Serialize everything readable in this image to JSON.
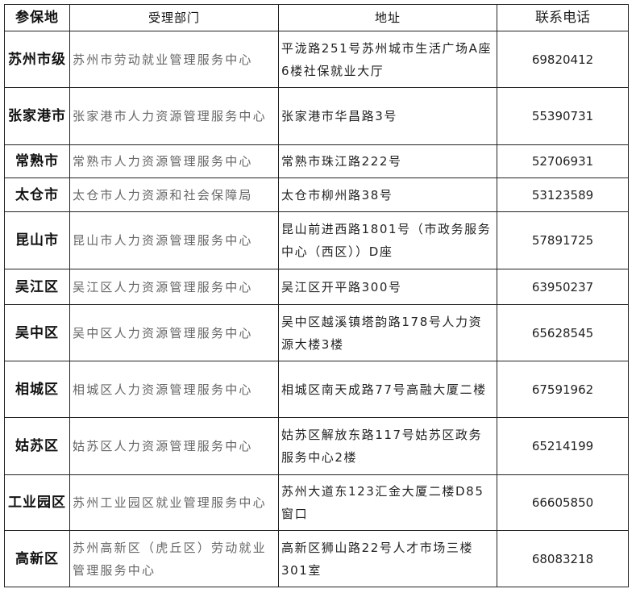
{
  "headers": [
    "参保地",
    "受理部门",
    "地址",
    "联系电话"
  ],
  "rows": [
    {
      "place": "苏州市级",
      "dept": "苏州市劳动就业管理服务中心",
      "address": "平泷路251号苏州城市生活广场A座6楼社保就业大厅",
      "phone": "69820412"
    },
    {
      "place": "张家港市",
      "dept": "张家港市人力资源管理服务中心",
      "address": "张家港市华昌路3号",
      "phone": "55390731"
    },
    {
      "place": "常熟市",
      "dept": "常熟市人力资源管理服务中心",
      "address": "常熟市珠江路222号",
      "phone": "52706931"
    },
    {
      "place": "太仓市",
      "dept": "太仓市人力资源和社会保障局",
      "address": "太仓市柳州路38号",
      "phone": "53123589"
    },
    {
      "place": "昆山市",
      "dept": "昆山市人力资源管理服务中心",
      "address": "昆山前进西路1801号（市政务服务中心（西区））D座",
      "phone": "57891725"
    },
    {
      "place": "吴江区",
      "dept": "吴江区人力资源管理服务中心",
      "address": "吴江区开平路300号",
      "phone": "63950237"
    },
    {
      "place": "吴中区",
      "dept": "吴中区人力资源管理服务中心",
      "address": "吴中区越溪镇塔韵路178号人力资源大楼3楼",
      "phone": "65628545"
    },
    {
      "place": "相城区",
      "dept": "相城区人力资源管理服务中心",
      "address": "相城区南天成路77号高融大厦二楼",
      "phone": "67591962"
    },
    {
      "place": "姑苏区",
      "dept": "姑苏区人力资源管理服务中心",
      "address": "姑苏区解放东路117号姑苏区政务服务中心2楼",
      "phone": "65214199"
    },
    {
      "place": "工业园区",
      "dept": "苏州工业园区就业管理服务中心",
      "address": "苏州大道东123汇金大厦二楼D85窗口",
      "phone": "66605850"
    },
    {
      "place": "高新区",
      "dept": "苏州高新区（虎丘区）劳动就业管理服务中心",
      "address": "高新区狮山路22号人才市场三楼301室",
      "phone": "68083218"
    }
  ]
}
